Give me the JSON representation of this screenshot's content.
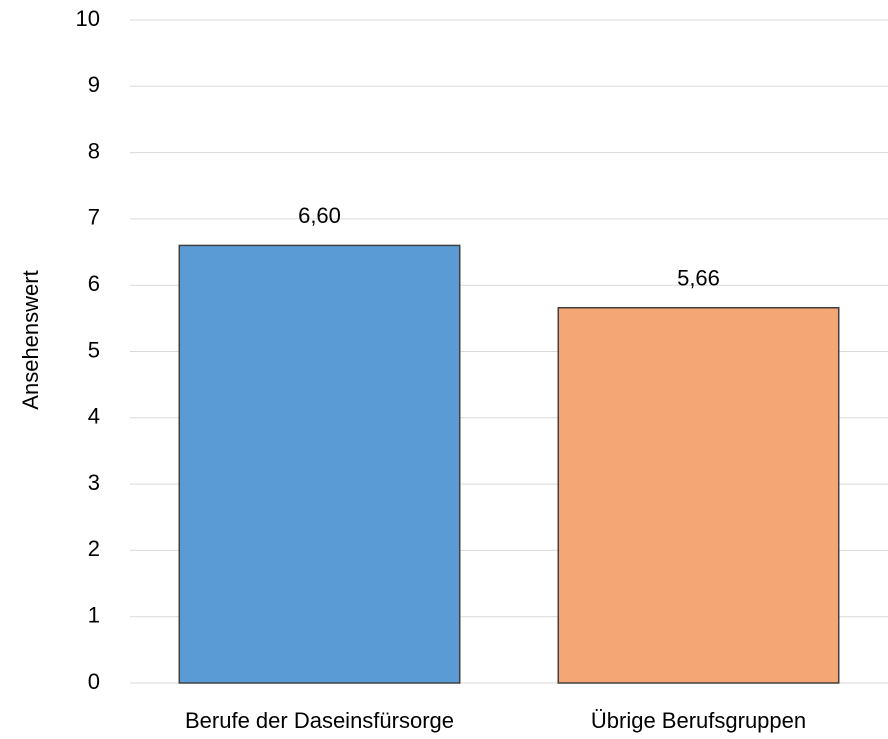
{
  "chart_data": {
    "type": "bar",
    "y_label": "Ansehenswert",
    "categories": [
      "Berufe der Daseinsfürsorge",
      "Übrige Berufsgruppen"
    ],
    "values": [
      6.6,
      5.66
    ],
    "value_labels": [
      "6,60",
      "5,66"
    ],
    "colors": [
      "#5b9bd5",
      "#f4a775"
    ],
    "ylim": [
      0,
      10
    ],
    "yticks": [
      0,
      1,
      2,
      3,
      4,
      5,
      6,
      7,
      8,
      9,
      10
    ],
    "grid": true
  }
}
